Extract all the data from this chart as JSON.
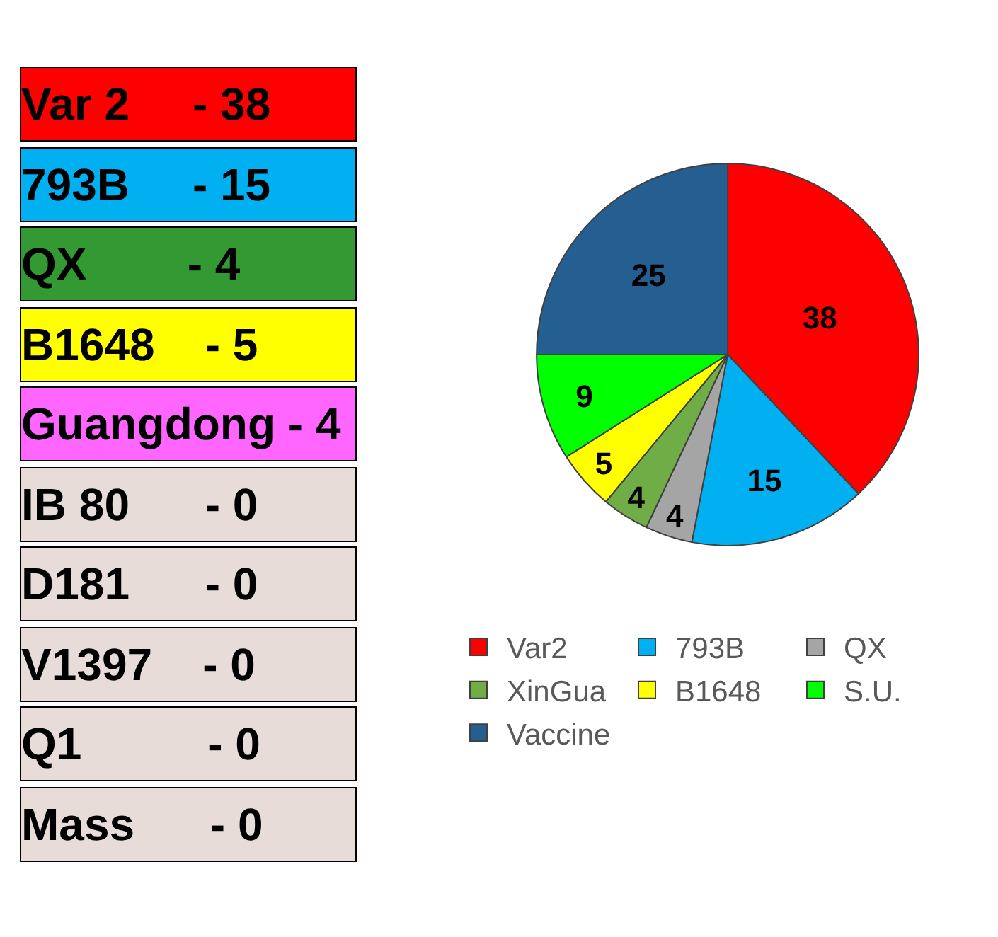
{
  "chart_data": [
    {
      "type": "other",
      "annotations": [
        "Var 2     - 38",
        "793B     - 15",
        "QX        - 4",
        "B1648    - 5",
        "Guangdong - 4",
        "IB 80      - 0",
        "D181      - 0",
        "V1397    - 0",
        "Q1          - 0",
        "Mass      - 0"
      ],
      "colors": [
        "#ff0000",
        "#00b0f0",
        "#339933",
        "#ffff00",
        "#ff66ff",
        "#e8dcd9",
        "#e8dcd9",
        "#e8dcd9",
        "#e8dcd9",
        "#e8dcd9"
      ]
    },
    {
      "type": "pie",
      "categories": [
        "Var2",
        "793B",
        "QX",
        "XinGua",
        "B1648",
        "S.U.",
        "Vaccine"
      ],
      "values": [
        38,
        15,
        4,
        4,
        5,
        9,
        25
      ],
      "colors": [
        "#ff0000",
        "#00b0f0",
        "#a5a5a5",
        "#70ad47",
        "#ffff00",
        "#00ff00",
        "#255e91"
      ],
      "data_labels": true,
      "legend": "bottom"
    }
  ]
}
